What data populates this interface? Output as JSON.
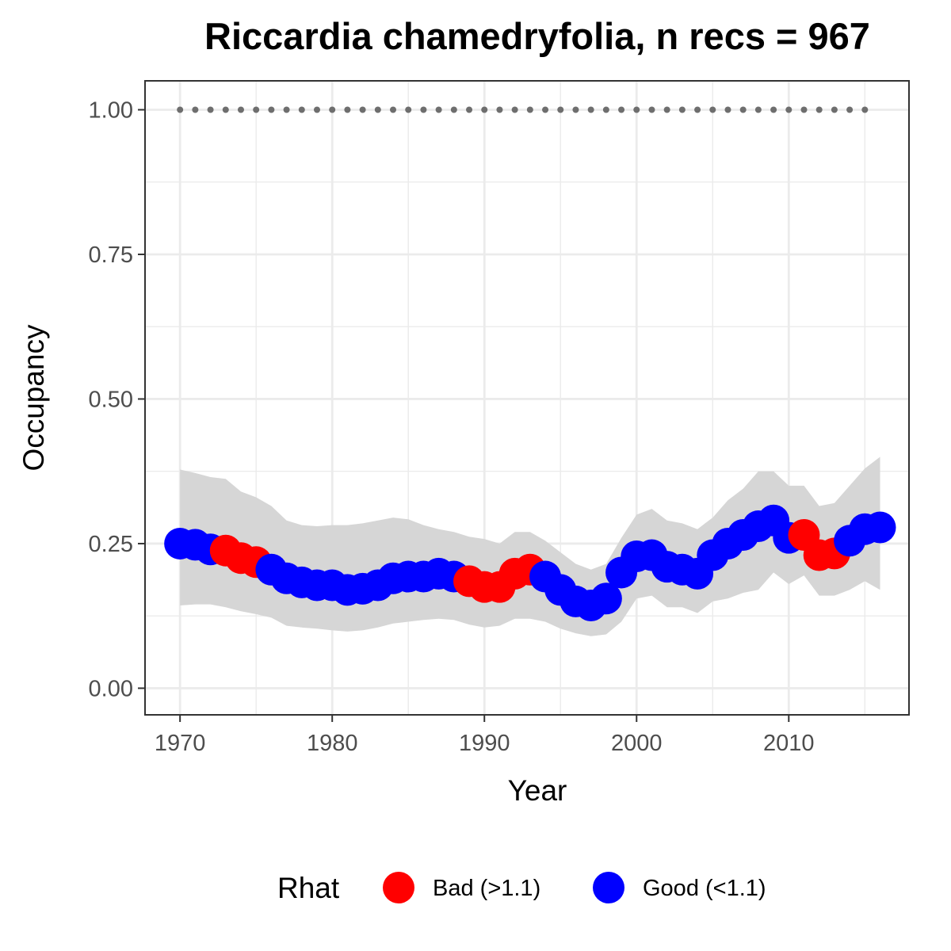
{
  "chart_data": {
    "type": "scatter",
    "title": "Riccardia chamedryfolia, n recs = 967",
    "xlabel": "Year",
    "ylabel": "Occupancy",
    "xlim": [
      1967.7,
      2017.9
    ],
    "ylim": [
      -0.046,
      1.05
    ],
    "x_ticks": [
      1970,
      1980,
      1990,
      2000,
      2010
    ],
    "x_tick_labels": [
      "1970",
      "1980",
      "1990",
      "2000",
      "2010"
    ],
    "y_ticks": [
      0,
      0.25,
      0.5,
      0.75,
      1
    ],
    "y_tick_labels": [
      "0.00",
      "0.25",
      "0.50",
      "0.75",
      "1.00"
    ],
    "grid": true,
    "legend": {
      "title": "Rhat",
      "position": "bottom",
      "entries": [
        {
          "label": "Bad (>1.1)",
          "color": "#ff0000"
        },
        {
          "label": "Good (<1.1)",
          "color": "#0000ff"
        }
      ]
    },
    "colors": {
      "bad": "#ff0000",
      "good": "#0000ff",
      "ribbon": "#d6d6d6",
      "reference": "#6e6e6e"
    },
    "reference_line": {
      "style": "dotted",
      "y": 1.0,
      "x_start": 1970,
      "x_end": 2015
    },
    "x": [
      1970,
      1971,
      1972,
      1973,
      1974,
      1975,
      1976,
      1977,
      1978,
      1979,
      1980,
      1981,
      1982,
      1983,
      1984,
      1985,
      1986,
      1987,
      1988,
      1989,
      1990,
      1991,
      1992,
      1993,
      1994,
      1995,
      1996,
      1997,
      1998,
      1999,
      2000,
      2001,
      2002,
      2003,
      2004,
      2005,
      2006,
      2007,
      2008,
      2009,
      2010,
      2011,
      2012,
      2013,
      2014,
      2015,
      2016
    ],
    "occupancy": [
      0.25,
      0.248,
      0.24,
      0.238,
      0.225,
      0.218,
      0.205,
      0.19,
      0.183,
      0.178,
      0.178,
      0.17,
      0.172,
      0.178,
      0.19,
      0.193,
      0.193,
      0.198,
      0.193,
      0.185,
      0.175,
      0.175,
      0.198,
      0.205,
      0.193,
      0.17,
      0.15,
      0.143,
      0.155,
      0.2,
      0.228,
      0.23,
      0.21,
      0.205,
      0.198,
      0.23,
      0.25,
      0.265,
      0.28,
      0.29,
      0.26,
      0.265,
      0.23,
      0.233,
      0.255,
      0.275,
      0.278
    ],
    "lower": [
      0.143,
      0.145,
      0.145,
      0.14,
      0.133,
      0.128,
      0.122,
      0.108,
      0.105,
      0.103,
      0.1,
      0.098,
      0.1,
      0.105,
      0.112,
      0.115,
      0.118,
      0.12,
      0.118,
      0.11,
      0.105,
      0.108,
      0.12,
      0.12,
      0.115,
      0.103,
      0.095,
      0.09,
      0.093,
      0.115,
      0.155,
      0.16,
      0.14,
      0.14,
      0.13,
      0.15,
      0.155,
      0.165,
      0.17,
      0.2,
      0.18,
      0.195,
      0.16,
      0.16,
      0.17,
      0.185,
      0.17
    ],
    "upper": [
      0.378,
      0.372,
      0.365,
      0.362,
      0.34,
      0.33,
      0.315,
      0.29,
      0.282,
      0.28,
      0.282,
      0.282,
      0.285,
      0.29,
      0.295,
      0.292,
      0.282,
      0.275,
      0.27,
      0.262,
      0.258,
      0.25,
      0.27,
      0.27,
      0.255,
      0.235,
      0.215,
      0.205,
      0.215,
      0.26,
      0.3,
      0.31,
      0.29,
      0.285,
      0.275,
      0.295,
      0.325,
      0.345,
      0.375,
      0.375,
      0.35,
      0.35,
      0.315,
      0.32,
      0.35,
      0.38,
      0.4
    ],
    "rhat_status": [
      "good",
      "good",
      "good",
      "bad",
      "bad",
      "bad",
      "good",
      "good",
      "good",
      "good",
      "good",
      "good",
      "good",
      "good",
      "good",
      "good",
      "good",
      "good",
      "good",
      "bad",
      "bad",
      "bad",
      "bad",
      "bad",
      "good",
      "good",
      "good",
      "good",
      "good",
      "good",
      "good",
      "good",
      "good",
      "good",
      "good",
      "good",
      "good",
      "good",
      "good",
      "good",
      "good",
      "bad",
      "bad",
      "bad",
      "good",
      "good",
      "good"
    ]
  }
}
